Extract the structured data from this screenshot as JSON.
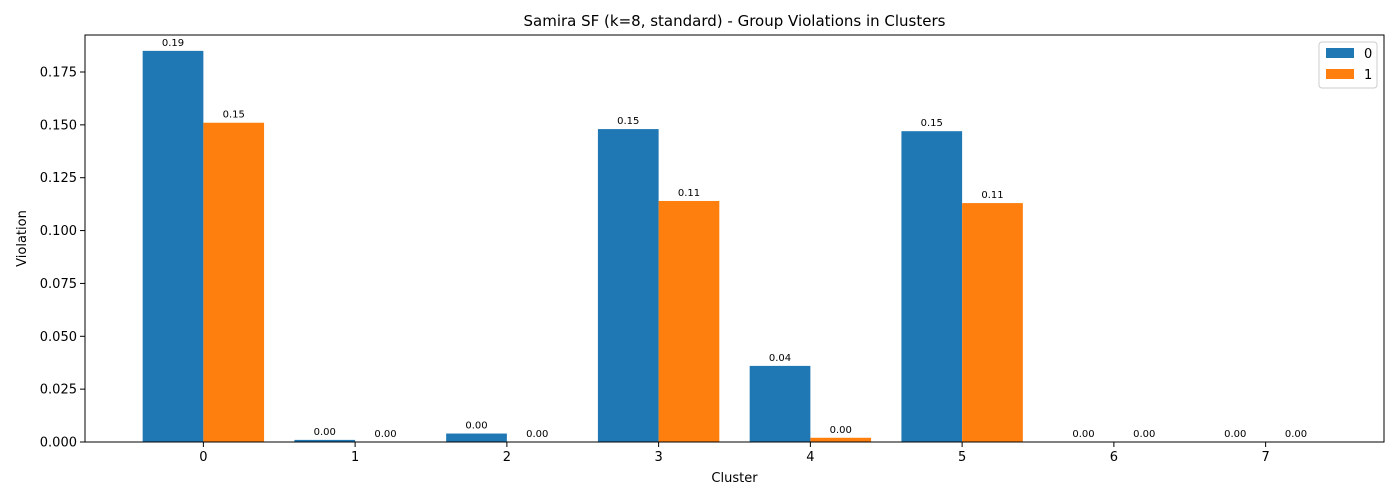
{
  "chart_data": {
    "type": "bar",
    "title": "Samira SF (k=8, standard) - Group Violations in Clusters",
    "xlabel": "Cluster",
    "ylabel": "Violation",
    "categories": [
      "0",
      "1",
      "2",
      "3",
      "4",
      "5",
      "6",
      "7"
    ],
    "series": [
      {
        "name": "0",
        "color": "#1f77b4",
        "values": [
          0.185,
          0.001,
          0.004,
          0.148,
          0.036,
          0.147,
          0.0,
          0.0
        ],
        "labels": [
          "0.19",
          "0.00",
          "0.00",
          "0.15",
          "0.04",
          "0.15",
          "0.00",
          "0.00"
        ]
      },
      {
        "name": "1",
        "color": "#ff7f0e",
        "values": [
          0.151,
          0.0,
          0.0,
          0.114,
          0.002,
          0.113,
          0.0,
          0.0
        ],
        "labels": [
          "0.15",
          "0.00",
          "0.00",
          "0.11",
          "0.00",
          "0.11",
          "0.00",
          "0.00"
        ]
      }
    ],
    "ylim": [
      0,
      0.1925
    ],
    "yticks": [
      0.0,
      0.025,
      0.05,
      0.075,
      0.1,
      0.125,
      0.15,
      0.175
    ],
    "ytick_labels": [
      "0.000",
      "0.025",
      "0.050",
      "0.075",
      "0.100",
      "0.125",
      "0.150",
      "0.175"
    ],
    "xlim": [
      -0.78,
      7.78
    ],
    "grid": false,
    "legend_position": "top-right"
  }
}
